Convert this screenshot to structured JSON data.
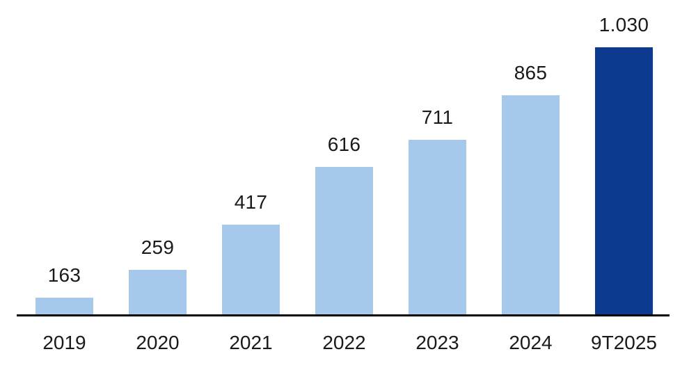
{
  "chart_data": {
    "type": "bar",
    "title": "",
    "xlabel": "",
    "ylabel": "",
    "grid": false,
    "legend_position": "none",
    "categories": [
      "2019",
      "2020",
      "2021",
      "2022",
      "2023",
      "2024",
      "9T2025"
    ],
    "values": [
      163,
      259,
      417,
      616,
      711,
      865,
      1030
    ],
    "value_labels": [
      "163",
      "259",
      "417",
      "616",
      "711",
      "865",
      "1.030"
    ],
    "highlight_index": 6,
    "ylim": [
      98,
      1030
    ],
    "colors": {
      "bar_fill": "#A6C9EB",
      "highlight_fill": "#0B3A8F",
      "axis_line": "#000000",
      "label_text": "#1A1A1A"
    }
  }
}
